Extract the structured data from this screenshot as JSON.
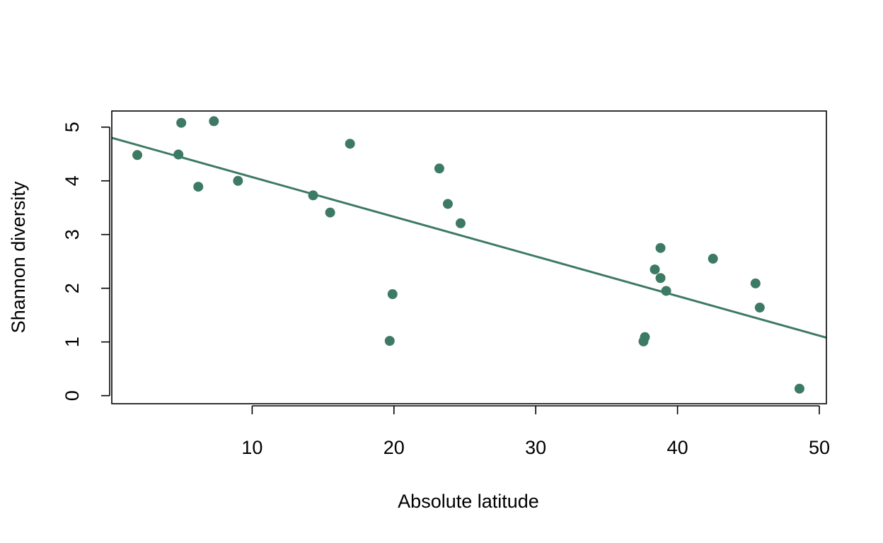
{
  "chart_data": {
    "type": "scatter",
    "title": "",
    "xlabel": "Absolute latitude",
    "ylabel": "Shannon diversity",
    "xlim": [
      0.1,
      50.5
    ],
    "ylim": [
      -0.15,
      5.3
    ],
    "x_ticks": [
      10,
      20,
      30,
      40,
      50
    ],
    "y_ticks": [
      0,
      1,
      2,
      3,
      4,
      5
    ],
    "grid": false,
    "colors": {
      "points": "#3d7a63",
      "fit_line": "#3d7a63",
      "axes": "#000000"
    },
    "points": [
      {
        "x": 1.9,
        "y": 4.48
      },
      {
        "x": 4.8,
        "y": 4.49
      },
      {
        "x": 5.0,
        "y": 5.08
      },
      {
        "x": 6.2,
        "y": 3.89
      },
      {
        "x": 7.3,
        "y": 5.11
      },
      {
        "x": 9.0,
        "y": 4.0
      },
      {
        "x": 14.3,
        "y": 3.73
      },
      {
        "x": 15.5,
        "y": 3.41
      },
      {
        "x": 16.9,
        "y": 4.69
      },
      {
        "x": 19.7,
        "y": 1.02
      },
      {
        "x": 19.9,
        "y": 1.89
      },
      {
        "x": 23.2,
        "y": 4.23
      },
      {
        "x": 23.8,
        "y": 3.57
      },
      {
        "x": 24.7,
        "y": 3.21
      },
      {
        "x": 37.6,
        "y": 1.01
      },
      {
        "x": 37.7,
        "y": 1.09
      },
      {
        "x": 38.4,
        "y": 2.35
      },
      {
        "x": 38.8,
        "y": 2.75
      },
      {
        "x": 38.8,
        "y": 2.19
      },
      {
        "x": 39.2,
        "y": 1.95
      },
      {
        "x": 42.5,
        "y": 2.55
      },
      {
        "x": 45.5,
        "y": 2.09
      },
      {
        "x": 45.8,
        "y": 1.64
      },
      {
        "x": 48.6,
        "y": 0.13
      }
    ],
    "fit_line": {
      "x": [
        0.1,
        50.5
      ],
      "y": [
        4.8,
        1.08
      ]
    }
  }
}
